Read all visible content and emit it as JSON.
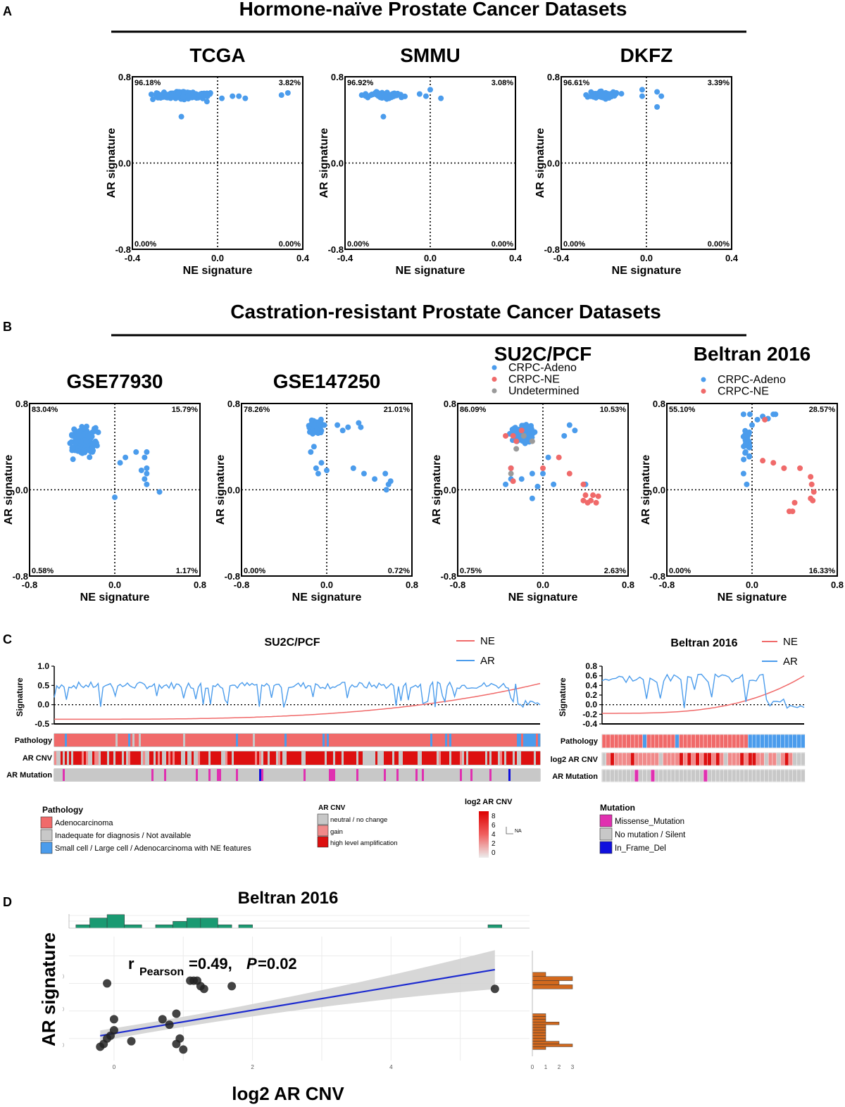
{
  "colors": {
    "blue": "#4b9cec",
    "red": "#f06a6a",
    "grey": "#9a9a9a",
    "green": "#1a9a72",
    "orange": "#d2691e",
    "fitline": "#1d2bd0",
    "band": "#d3d3d3",
    "lightred": "#f08a8a",
    "darkred": "#dd1010",
    "magenta": "#e030b0",
    "deepblue": "#1010dd",
    "lightgrey": "#c8c8c8"
  },
  "panelA": {
    "letter": "A",
    "heading": "Hormone-naïve Prostate Cancer Datasets",
    "plots": [
      {
        "title": "TCGA",
        "q": {
          "tl": "96.18%",
          "tr": "3.82%",
          "bl": "0.00%",
          "br": "0.00%"
        },
        "cloud": {
          "cx": -0.17,
          "cy": 0.63,
          "sx": 0.09,
          "sy": 0.025,
          "n": 240,
          "seed": 11
        },
        "extra": [
          [
            0.3,
            0.63
          ],
          [
            0.33,
            0.65
          ],
          [
            0.13,
            0.6
          ],
          [
            0.1,
            0.62
          ],
          [
            -0.17,
            0.43
          ],
          [
            0.07,
            0.62
          ],
          [
            -0.05,
            0.57
          ],
          [
            0.02,
            0.6
          ]
        ]
      },
      {
        "title": "SMMU",
        "q": {
          "tl": "96.92%",
          "tr": "3.08%",
          "bl": "0.00%",
          "br": "0.00%"
        },
        "cloud": {
          "cx": -0.22,
          "cy": 0.63,
          "sx": 0.07,
          "sy": 0.025,
          "n": 60,
          "seed": 23
        },
        "extra": [
          [
            0.05,
            0.6
          ],
          [
            0.0,
            0.68
          ],
          [
            -0.22,
            0.43
          ],
          [
            -0.05,
            0.64
          ],
          [
            -0.02,
            0.62
          ]
        ]
      },
      {
        "title": "DKFZ",
        "q": {
          "tl": "96.61%",
          "tr": "3.39%",
          "bl": "0.00%",
          "br": "0.00%"
        },
        "cloud": {
          "cx": -0.2,
          "cy": 0.63,
          "sx": 0.06,
          "sy": 0.025,
          "n": 70,
          "seed": 37
        },
        "extra": [
          [
            0.05,
            0.66
          ],
          [
            0.07,
            0.62
          ],
          [
            0.05,
            0.52
          ],
          [
            -0.02,
            0.62
          ],
          [
            -0.02,
            0.68
          ]
        ]
      }
    ],
    "xlabel": "NE signature",
    "ylabel": "AR signature",
    "xticks": [
      "-0.4",
      "0.0",
      "0.4"
    ],
    "yticks": [
      "0.8",
      "0.0",
      "-0.8"
    ]
  },
  "panelB": {
    "letter": "B",
    "heading": "Castration-resistant Prostate Cancer Datasets",
    "plots": [
      {
        "title": "GSE77930",
        "q": {
          "tl": "83.04%",
          "tr": "15.79%",
          "bl": "0.58%",
          "br": "1.17%"
        },
        "cloud": {
          "cx": -0.3,
          "cy": 0.45,
          "sx": 0.1,
          "sy": 0.1,
          "n": 160,
          "seed": 5
        },
        "extra": [
          [
            0.3,
            0.35
          ],
          [
            0.28,
            0.3
          ],
          [
            0.3,
            0.2
          ],
          [
            0.25,
            0.18
          ],
          [
            0.3,
            0.15
          ],
          [
            0.28,
            0.1
          ],
          [
            0.3,
            0.05
          ],
          [
            0.42,
            -0.02
          ],
          [
            0.0,
            -0.07
          ],
          [
            0.1,
            0.3
          ],
          [
            0.2,
            0.35
          ],
          [
            0.05,
            0.25
          ]
        ],
        "legend": []
      },
      {
        "title": "GSE147250",
        "q": {
          "tl": "78.26%",
          "tr": "21.01%",
          "bl": "0.00%",
          "br": "0.72%"
        },
        "cloud": {
          "cx": -0.1,
          "cy": 0.58,
          "sx": 0.05,
          "sy": 0.05,
          "n": 130,
          "seed": 9
        },
        "extra": [
          [
            0.3,
            0.62
          ],
          [
            0.32,
            0.58
          ],
          [
            0.2,
            0.58
          ],
          [
            0.15,
            0.55
          ],
          [
            0.1,
            0.6
          ],
          [
            0.25,
            0.2
          ],
          [
            0.35,
            0.15
          ],
          [
            0.45,
            0.1
          ],
          [
            0.55,
            0.15
          ],
          [
            0.58,
            0.05
          ],
          [
            0.6,
            0.08
          ],
          [
            0.56,
            0.0
          ],
          [
            -0.1,
            0.2
          ],
          [
            -0.08,
            0.15
          ],
          [
            -0.05,
            0.25
          ],
          [
            0.0,
            0.18
          ],
          [
            -0.15,
            0.35
          ],
          [
            -0.12,
            0.4
          ]
        ],
        "legend": []
      },
      {
        "title": "SU2C/PCF",
        "q": {
          "tl": "86.09%",
          "tr": "10.53%",
          "bl": "0.75%",
          "br": "2.63%"
        },
        "cloud": {
          "cx": -0.2,
          "cy": 0.52,
          "sx": 0.08,
          "sy": 0.06,
          "n": 170,
          "seed": 13
        },
        "extra": [
          [
            0.3,
            0.55
          ],
          [
            0.25,
            0.6
          ],
          [
            0.2,
            0.5
          ],
          [
            -0.3,
            0.2
          ],
          [
            -0.3,
            0.1
          ],
          [
            -0.35,
            0.05
          ],
          [
            -0.2,
            0.1
          ],
          [
            -0.1,
            0.15
          ],
          [
            -0.05,
            0.03
          ],
          [
            -0.1,
            -0.08
          ],
          [
            0.1,
            0.05
          ],
          [
            0.4,
            0.05
          ],
          [
            0.0,
            0.15
          ],
          [
            0.05,
            0.3
          ]
        ],
        "red": [
          [
            -0.25,
            0.45
          ],
          [
            -0.28,
            0.5
          ],
          [
            -0.35,
            0.5
          ],
          [
            -0.2,
            0.55
          ],
          [
            -0.3,
            0.2
          ],
          [
            -0.28,
            0.08
          ],
          [
            0.0,
            0.2
          ],
          [
            0.15,
            0.3
          ],
          [
            0.25,
            0.15
          ],
          [
            0.38,
            0.05
          ],
          [
            0.4,
            -0.05
          ],
          [
            0.38,
            -0.1
          ],
          [
            0.45,
            -0.1
          ],
          [
            0.5,
            -0.12
          ],
          [
            0.52,
            -0.06
          ],
          [
            0.42,
            -0.12
          ],
          [
            0.47,
            -0.05
          ]
        ],
        "grey": [
          [
            -0.3,
            0.15
          ],
          [
            -0.1,
            0.45
          ],
          [
            -0.25,
            0.38
          ],
          [
            -0.18,
            0.5
          ]
        ],
        "legend": [
          {
            "label": "CRPC-Adeno",
            "color": "blue"
          },
          {
            "label": "CRPC-NE",
            "color": "red"
          },
          {
            "label": "Undetermined",
            "color": "grey"
          }
        ]
      },
      {
        "title": "Beltran 2016",
        "q": {
          "tl": "55.10%",
          "tr": "28.57%",
          "bl": "0.00%",
          "br": "16.33%"
        },
        "cloud": {
          "cx": -0.05,
          "cy": 0.45,
          "sx": 0.03,
          "sy": 0.12,
          "n": 25,
          "seed": 19
        },
        "extra": [
          [
            0.05,
            0.65
          ],
          [
            0.1,
            0.68
          ],
          [
            0.15,
            0.66
          ],
          [
            0.2,
            0.7
          ],
          [
            0.22,
            0.7
          ],
          [
            0.0,
            0.6
          ],
          [
            -0.05,
            0.05
          ],
          [
            -0.08,
            0.15
          ],
          [
            -0.02,
            0.7
          ],
          [
            -0.08,
            0.7
          ]
        ],
        "red": [
          [
            0.12,
            0.65
          ],
          [
            0.1,
            0.27
          ],
          [
            0.2,
            0.25
          ],
          [
            0.3,
            0.2
          ],
          [
            0.45,
            0.2
          ],
          [
            0.55,
            0.12
          ],
          [
            0.56,
            0.05
          ],
          [
            0.58,
            -0.02
          ],
          [
            0.55,
            -0.08
          ],
          [
            0.57,
            -0.1
          ],
          [
            0.4,
            -0.12
          ],
          [
            0.38,
            -0.2
          ],
          [
            0.35,
            -0.2
          ]
        ],
        "legend": [
          {
            "label": "CRPC-Adeno",
            "color": "blue"
          },
          {
            "label": "CRPC-NE",
            "color": "red"
          }
        ]
      }
    ],
    "xlabel": "NE signature",
    "ylabel": "AR signature",
    "xticks": [
      "-0.8",
      "0.0",
      "0.8"
    ],
    "yticks": [
      "0.8",
      "0.0",
      "-0.8"
    ]
  },
  "panelC": {
    "letter": "C",
    "left": {
      "title": "SU2C/PCF",
      "ylabel": "Signature",
      "yticks": [
        "1.0",
        "0.5",
        "0.0",
        "-0.5"
      ],
      "legend": [
        "NE",
        "AR"
      ],
      "rows": [
        "Pathology",
        "AR CNV",
        "AR Mutation"
      ]
    },
    "right": {
      "title": "Beltran 2016",
      "ylabel": "Signature",
      "yticks": [
        "0.8",
        "0.6",
        "0.4",
        "0.2",
        "0.0",
        "-0.2",
        "-0.4"
      ],
      "legend": [
        "NE",
        "AR"
      ],
      "rows": [
        "Pathology",
        "log2 AR CNV",
        "AR Mutation"
      ]
    },
    "legend_pathology": {
      "title": "Pathology",
      "items": [
        "Adenocarcinoma",
        "Inadequate for diagnosis / Not available",
        "Small cell / Large cell / Adenocarcinoma with NE features"
      ]
    },
    "legend_cnv": {
      "title": "AR CNV",
      "items": [
        "neutral / no change",
        "gain",
        "high level amplification"
      ]
    },
    "legend_log2": {
      "title": "log2 AR CNV",
      "ticks": [
        "8",
        "6",
        "4",
        "2",
        "0"
      ],
      "na": "NA"
    },
    "legend_mutation": {
      "title": "Mutation",
      "items": [
        "Missense_Mutation",
        "No mutation / Silent",
        "In_Frame_Del"
      ]
    }
  },
  "panelD": {
    "letter": "D",
    "title": "Beltran 2016",
    "annotation": {
      "r": "r",
      "sub": "Pearson",
      "stat": "=0.49,",
      "p": "P",
      "pval": "=0.02"
    },
    "xlabel": "log2 AR CNV",
    "ylabel": "AR signature",
    "xticks": [
      "0",
      "2",
      "4"
    ],
    "hist_x_ticks": [
      "0",
      "1",
      "2",
      "3"
    ]
  },
  "chart_data": [
    {
      "type": "scatter",
      "title": "TCGA",
      "group": "Hormone-naïve Prostate Cancer Datasets",
      "xlabel": "NE signature",
      "ylabel": "AR signature",
      "xlim": [
        -0.4,
        0.4
      ],
      "ylim": [
        -0.8,
        0.8
      ],
      "quadrant_percent": {
        "top_left": 96.18,
        "top_right": 3.82,
        "bottom_left": 0.0,
        "bottom_right": 0.0
      }
    },
    {
      "type": "scatter",
      "title": "SMMU",
      "group": "Hormone-naïve Prostate Cancer Datasets",
      "xlabel": "NE signature",
      "ylabel": "AR signature",
      "xlim": [
        -0.4,
        0.4
      ],
      "ylim": [
        -0.8,
        0.8
      ],
      "quadrant_percent": {
        "top_left": 96.92,
        "top_right": 3.08,
        "bottom_left": 0.0,
        "bottom_right": 0.0
      }
    },
    {
      "type": "scatter",
      "title": "DKFZ",
      "group": "Hormone-naïve Prostate Cancer Datasets",
      "xlabel": "NE signature",
      "ylabel": "AR signature",
      "xlim": [
        -0.4,
        0.4
      ],
      "ylim": [
        -0.8,
        0.8
      ],
      "quadrant_percent": {
        "top_left": 96.61,
        "top_right": 3.39,
        "bottom_left": 0.0,
        "bottom_right": 0.0
      }
    },
    {
      "type": "scatter",
      "title": "GSE77930",
      "group": "Castration-resistant Prostate Cancer Datasets",
      "xlabel": "NE signature",
      "ylabel": "AR signature",
      "xlim": [
        -0.8,
        0.8
      ],
      "ylim": [
        -0.8,
        0.8
      ],
      "quadrant_percent": {
        "top_left": 83.04,
        "top_right": 15.79,
        "bottom_left": 0.58,
        "bottom_right": 1.17
      }
    },
    {
      "type": "scatter",
      "title": "GSE147250",
      "group": "Castration-resistant Prostate Cancer Datasets",
      "xlabel": "NE signature",
      "ylabel": "AR signature",
      "xlim": [
        -0.8,
        0.8
      ],
      "ylim": [
        -0.8,
        0.8
      ],
      "quadrant_percent": {
        "top_left": 78.26,
        "top_right": 21.01,
        "bottom_left": 0.0,
        "bottom_right": 0.72
      }
    },
    {
      "type": "scatter",
      "title": "SU2C/PCF",
      "group": "Castration-resistant Prostate Cancer Datasets",
      "xlabel": "NE signature",
      "ylabel": "AR signature",
      "xlim": [
        -0.8,
        0.8
      ],
      "ylim": [
        -0.8,
        0.8
      ],
      "legend": [
        "CRPC-Adeno",
        "CRPC-NE",
        "Undetermined"
      ],
      "quadrant_percent": {
        "top_left": 86.09,
        "top_right": 10.53,
        "bottom_left": 0.75,
        "bottom_right": 2.63
      }
    },
    {
      "type": "scatter",
      "title": "Beltran 2016",
      "group": "Castration-resistant Prostate Cancer Datasets",
      "xlabel": "NE signature",
      "ylabel": "AR signature",
      "xlim": [
        -0.8,
        0.8
      ],
      "ylim": [
        -0.8,
        0.8
      ],
      "legend": [
        "CRPC-Adeno",
        "CRPC-NE"
      ],
      "quadrant_percent": {
        "top_left": 55.1,
        "top_right": 28.57,
        "bottom_left": 0.0,
        "bottom_right": 16.33
      }
    },
    {
      "type": "line",
      "title": "SU2C/PCF",
      "ylabel": "Signature",
      "ylim": [
        -0.5,
        1.0
      ],
      "series": [
        {
          "name": "NE",
          "trend": "increasing from about -0.4 to 0.5"
        },
        {
          "name": "AR",
          "trend": "fluctuating around 0.5, dropping near 0 at the right end"
        }
      ]
    },
    {
      "type": "line",
      "title": "Beltran 2016",
      "ylabel": "Signature",
      "ylim": [
        -0.4,
        0.8
      ],
      "series": [
        {
          "name": "NE",
          "trend": "increasing from about -0.2 to 0.6"
        },
        {
          "name": "AR",
          "trend": "fluctuating 0.4-0.7, dropping to about -0.2 at the right end"
        }
      ]
    },
    {
      "type": "scatter",
      "title": "Beltran 2016",
      "xlabel": "log2 AR CNV",
      "ylabel": "AR signature",
      "pearson_r": 0.49,
      "p_value": 0.02,
      "points": [
        [
          -0.2,
          0.02
        ],
        [
          -0.15,
          0.03
        ],
        [
          -0.1,
          0.05
        ],
        [
          -0.05,
          0.06
        ],
        [
          0.0,
          0.08
        ],
        [
          0.0,
          0.12
        ],
        [
          -0.1,
          0.25
        ],
        [
          0.25,
          0.04
        ],
        [
          0.7,
          0.12
        ],
        [
          0.8,
          0.1
        ],
        [
          0.9,
          0.14
        ],
        [
          0.95,
          0.05
        ],
        [
          1.0,
          0.01
        ],
        [
          0.9,
          0.03
        ],
        [
          1.1,
          0.26
        ],
        [
          1.15,
          0.26
        ],
        [
          1.2,
          0.26
        ],
        [
          1.25,
          0.24
        ],
        [
          1.3,
          0.23
        ],
        [
          1.7,
          0.24
        ],
        [
          5.5,
          0.23
        ]
      ],
      "fit": {
        "x0": -0.2,
        "y0": 0.06,
        "x1": 5.5,
        "y1": 0.3
      }
    }
  ]
}
